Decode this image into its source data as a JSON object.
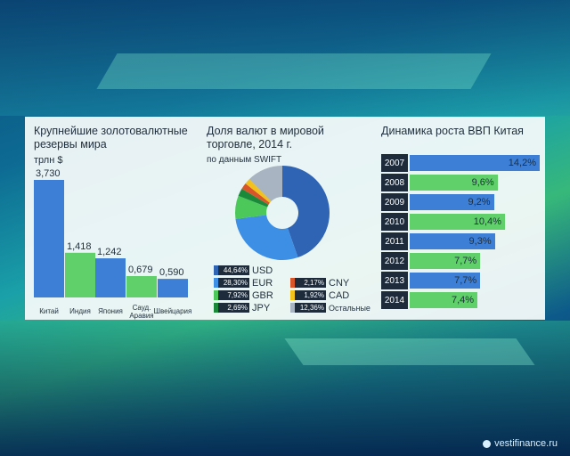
{
  "reserves": {
    "title_line1": "Крупнейшие золотовалютные",
    "title_line2": "резервы мира",
    "unit": "трлн $"
  },
  "currencies": {
    "title_line1": "Доля валют в мировой",
    "title_line2": "торговле, 2014 г.",
    "source": "по данным SWIFT"
  },
  "gdp": {
    "title": "Динамика роста ВВП Китая"
  },
  "watermark": "vestifinance.ru",
  "colors": {
    "blue": "#3d7fd6",
    "green": "#5fd06a",
    "dark": "#1d2b3a"
  },
  "chart_data": [
    {
      "type": "bar",
      "title": "Крупнейшие золотовалютные резервы мира",
      "ylabel": "трлн $",
      "categories": [
        "Китай",
        "Индия",
        "Япония",
        "Сауд. Аравия",
        "Швейцария"
      ],
      "values": [
        3.73,
        1.418,
        1.242,
        0.679,
        0.59
      ],
      "value_labels": [
        "3,730",
        "1,418",
        "1,242",
        "0,679",
        "0,590"
      ],
      "colors": [
        "#3d7fd6",
        "#5fd06a",
        "#3d7fd6",
        "#5fd06a",
        "#3d7fd6"
      ],
      "grid": false
    },
    {
      "type": "pie",
      "title": "Доля валют в мировой торговле, 2014 г.",
      "subtitle": "по данным SWIFT",
      "labels": [
        "USD",
        "EUR",
        "GBR",
        "JPY",
        "CNY",
        "CAD",
        "Остальные"
      ],
      "values": [
        44.64,
        28.3,
        7.92,
        2.69,
        2.17,
        1.92,
        12.36
      ],
      "value_labels": [
        "44,64%",
        "28,30%",
        "7,92%",
        "2,69%",
        "2,17%",
        "1,92%",
        "12,36%"
      ],
      "colors": [
        "#2f63b4",
        "#3d8fe6",
        "#4cc85a",
        "#1a8a3a",
        "#d8552a",
        "#f2c21a",
        "#a9b4c2"
      ],
      "legend": "bottom"
    },
    {
      "type": "bar",
      "orientation": "horizontal",
      "title": "Динамика роста ВВП Китая",
      "categories": [
        "2007",
        "2008",
        "2009",
        "2010",
        "2011",
        "2012",
        "2013",
        "2014"
      ],
      "values": [
        14.2,
        9.6,
        9.2,
        10.4,
        9.3,
        7.7,
        7.7,
        7.4
      ],
      "value_labels": [
        "14,2%",
        "9,6%",
        "9,2%",
        "10,4%",
        "9,3%",
        "7,7%",
        "7,7%",
        "7,4%"
      ],
      "colors": [
        "#3d7fd6",
        "#5fd06a",
        "#3d7fd6",
        "#5fd06a",
        "#3d7fd6",
        "#5fd06a",
        "#3d7fd6",
        "#5fd06a"
      ],
      "grid": false
    }
  ]
}
